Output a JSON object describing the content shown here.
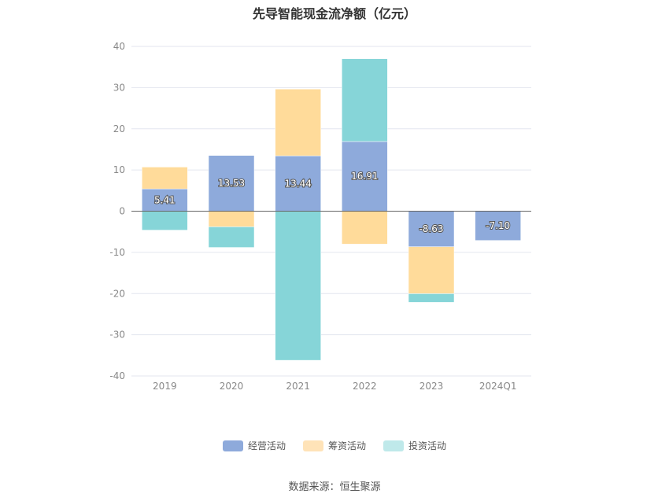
{
  "chart_data": {
    "type": "bar",
    "stacked": true,
    "title": "先导智能现金流净额（亿元）",
    "categories": [
      "2019",
      "2020",
      "2021",
      "2022",
      "2023",
      "2024Q1"
    ],
    "ylim": [
      -40,
      40
    ],
    "yticks": [
      40,
      30,
      20,
      10,
      0,
      -10,
      -20,
      -30,
      -40
    ],
    "grid": true,
    "legend_position": "bottom",
    "series": [
      {
        "name": "经营活动",
        "color": "#8eaadb",
        "values": [
          5.41,
          13.53,
          13.44,
          16.91,
          -8.63,
          -7.1
        ],
        "labels": [
          "5.41",
          "13.53",
          "13.44",
          "16.91",
          "-8.63",
          "-7.10"
        ]
      },
      {
        "name": "筹资活动",
        "color": "#ffdb9a",
        "values": [
          5.3,
          -3.8,
          16.2,
          -8.0,
          -11.4,
          0
        ],
        "labels": null
      },
      {
        "name": "投资活动",
        "color": "#86d5d8",
        "values": [
          -4.6,
          -5.0,
          -36.2,
          20.1,
          -2.1,
          0
        ],
        "labels": null
      }
    ],
    "legend_colors": [
      "#8eaadb",
      "#ffe3b8",
      "#bfe9ea"
    ],
    "source": "数据来源：恒生聚源"
  }
}
